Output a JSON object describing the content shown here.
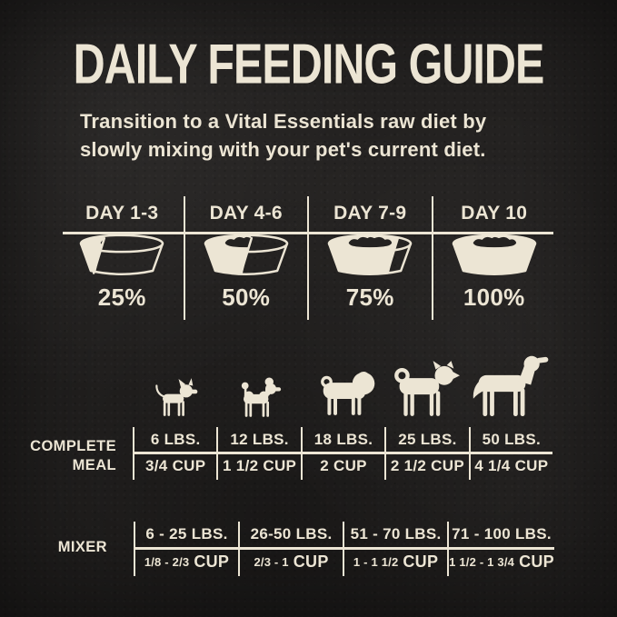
{
  "title": "DAILY FEEDING GUIDE",
  "subtitle": "Transition to a Vital Essentials raw diet by slowly mixing with your pet's current diet.",
  "colors": {
    "background": "#242221",
    "cream": "#ECE5D4"
  },
  "transition": {
    "columns": [
      {
        "day": "DAY 1-3",
        "percent": 25,
        "percent_label": "25%"
      },
      {
        "day": "DAY 4-6",
        "percent": 50,
        "percent_label": "50%"
      },
      {
        "day": "DAY 7-9",
        "percent": 75,
        "percent_label": "75%"
      },
      {
        "day": "DAY 10",
        "percent": 100,
        "percent_label": "100%"
      }
    ]
  },
  "complete_meal": {
    "label_line1": "COMPLETE",
    "label_line2": "MEAL",
    "columns": [
      {
        "weight": "6 LBS.",
        "cup": "3/4 CUP",
        "dog": "chihuahua"
      },
      {
        "weight": "12 LBS.",
        "cup": "1 1/2 CUP",
        "dog": "poodle"
      },
      {
        "weight": "18 LBS.",
        "cup": "2 CUP",
        "dog": "pug"
      },
      {
        "weight": "25 LBS.",
        "cup": "2 1/2 CUP",
        "dog": "shiba-inu"
      },
      {
        "weight": "50 LBS.",
        "cup": "4 1/4 CUP",
        "dog": "retriever"
      }
    ]
  },
  "mixer": {
    "label": "MIXER",
    "columns": [
      {
        "weight": "6 - 25 LBS.",
        "range": "1/8 - 2/3",
        "unit": "CUP"
      },
      {
        "weight": "26-50 LBS.",
        "range": "2/3 - 1",
        "unit": "CUP"
      },
      {
        "weight": "51 - 70 LBS.",
        "range": "1 - 1 1/2",
        "unit": "CUP"
      },
      {
        "weight": "71 - 100 LBS.",
        "range": "1 1/2 - 1 3/4",
        "unit": "CUP"
      }
    ]
  },
  "chart_data": [
    {
      "type": "table",
      "title": "Transition schedule",
      "columns": [
        "DAY 1-3",
        "DAY 4-6",
        "DAY 7-9",
        "DAY 10"
      ],
      "values": [
        "25%",
        "50%",
        "75%",
        "100%"
      ]
    },
    {
      "type": "table",
      "title": "COMPLETE MEAL",
      "columns": [
        "6 LBS.",
        "12 LBS.",
        "18 LBS.",
        "25 LBS.",
        "50 LBS."
      ],
      "values": [
        "3/4 CUP",
        "1 1/2 CUP",
        "2 CUP",
        "2 1/2 CUP",
        "4 1/4 CUP"
      ]
    },
    {
      "type": "table",
      "title": "MIXER",
      "columns": [
        "6 - 25 LBS.",
        "26-50 LBS.",
        "51 - 70 LBS.",
        "71 - 100 LBS."
      ],
      "values": [
        "1/8 - 2/3 CUP",
        "2/3 - 1 CUP",
        "1 - 1 1/2 CUP",
        "1 1/2 - 1 3/4 CUP"
      ]
    }
  ]
}
